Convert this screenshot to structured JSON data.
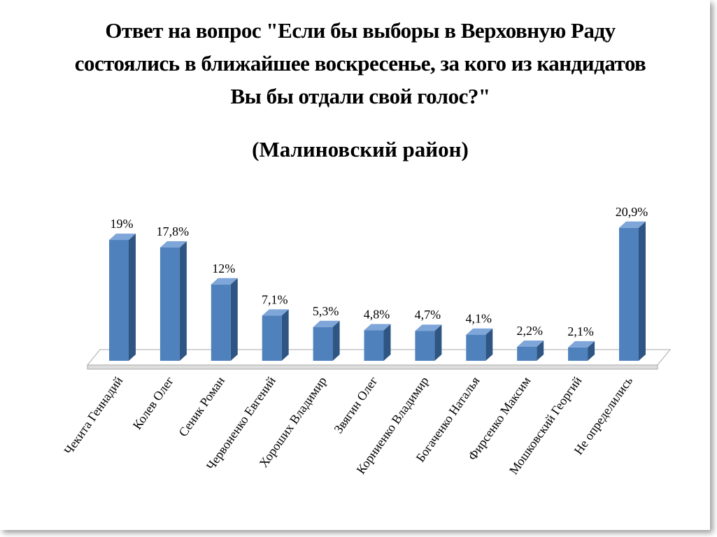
{
  "chart_data": {
    "type": "bar3d",
    "title": "Ответ на вопрос \"Если бы выборы в Верховную Раду состоялись в ближайшее воскресенье, за кого из кандидатов Вы бы отдали свой голос?\"",
    "subtitle": "(Малиновский район)",
    "categories": [
      "Чекита Геннадий",
      "Колев Олег",
      "Сеник Роман",
      "Червоненко Евгений",
      "Хороших Владимир",
      "Звягин Олег",
      "Корниенко Владимир",
      "Богаченко Наталья",
      "Фирсенко Максим",
      "Мошковский Георгий",
      "Не определились"
    ],
    "values": [
      19,
      17.8,
      12,
      7.1,
      5.3,
      4.8,
      4.7,
      4.1,
      2.2,
      2.1,
      20.9
    ],
    "value_labels": [
      "19%",
      "17,8%",
      "12%",
      "7,1%",
      "5,3%",
      "4,8%",
      "4,7%",
      "4,1%",
      "2,2%",
      "2,1%",
      "20,9%"
    ],
    "color": "#4f81bd"
  }
}
